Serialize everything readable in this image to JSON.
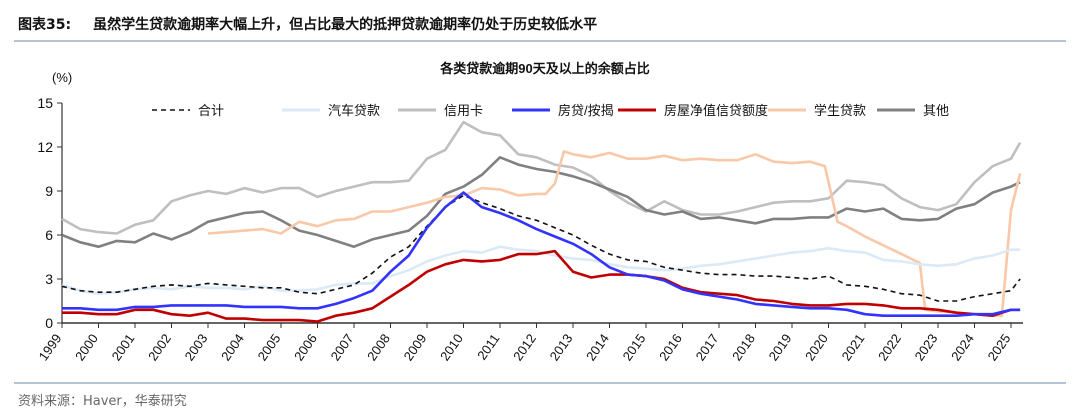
{
  "figure": {
    "label": "图表35:",
    "title": "虽然学生贷款逾期率大幅上升，但占比最大的抵押贷款逾期率仍处于历史较低水平",
    "source": "资料来源：Haver，华泰研究"
  },
  "chart_data": {
    "type": "line",
    "title": "各类贷款逾期90天及以上的余额占比",
    "ylabel": "(%)",
    "xlabel": "",
    "ylim": [
      0,
      15
    ],
    "xlim": [
      1999,
      2025.33
    ],
    "yticks": [
      "0",
      "3",
      "6",
      "9",
      "12",
      "15"
    ],
    "xticks": [
      "1999",
      "2000",
      "2001",
      "2002",
      "2003",
      "2004",
      "2005",
      "2006",
      "2007",
      "2008",
      "2009",
      "2010",
      "2011",
      "2012",
      "2013",
      "2014",
      "2015",
      "2016",
      "2017",
      "2018",
      "2019",
      "2020",
      "2021",
      "2022",
      "2023",
      "2024",
      "2025"
    ],
    "grid": false,
    "legend_position": "top",
    "x_halfyear": [
      1999,
      1999.5,
      2000,
      2000.5,
      2001,
      2001.5,
      2002,
      2002.5,
      2003,
      2003.5,
      2004,
      2004.5,
      2005,
      2005.5,
      2006,
      2006.5,
      2007,
      2007.5,
      2008,
      2008.5,
      2009,
      2009.5,
      2010,
      2010.5,
      2011,
      2011.5,
      2012,
      2012.5,
      2013,
      2013.5,
      2014,
      2014.5,
      2015,
      2015.5,
      2016,
      2016.5,
      2017,
      2017.5,
      2018,
      2018.5,
      2019,
      2019.5,
      2020,
      2020.5,
      2021,
      2021.5,
      2022,
      2022.5,
      2023,
      2023.5,
      2024,
      2024.5,
      2025,
      2025.25
    ],
    "series": [
      {
        "name": "合计",
        "color": "#111111",
        "dash": true,
        "values": [
          2.5,
          2.2,
          2.1,
          2.1,
          2.3,
          2.5,
          2.6,
          2.5,
          2.7,
          2.6,
          2.5,
          2.4,
          2.4,
          2.1,
          2.0,
          2.3,
          2.6,
          3.4,
          4.5,
          5.2,
          6.6,
          7.9,
          8.7,
          8.2,
          7.8,
          7.3,
          7.0,
          6.5,
          6.0,
          5.3,
          4.7,
          4.3,
          4.2,
          3.8,
          3.6,
          3.4,
          3.3,
          3.3,
          3.2,
          3.2,
          3.1,
          3.0,
          3.2,
          2.6,
          2.5,
          2.3,
          2.0,
          1.9,
          1.5,
          1.5,
          1.8,
          2.0,
          2.2,
          3.0
        ]
      },
      {
        "name": "汽车贷款",
        "color": "#dce9f7",
        "values": [
          2.6,
          2.2,
          2.0,
          2.1,
          2.3,
          2.4,
          2.3,
          2.5,
          2.4,
          2.4,
          2.3,
          2.5,
          2.2,
          2.2,
          2.3,
          2.6,
          2.7,
          2.7,
          3.2,
          3.6,
          4.2,
          4.6,
          4.9,
          4.8,
          5.2,
          5.0,
          4.9,
          4.6,
          4.4,
          4.3,
          4.0,
          3.8,
          3.7,
          3.6,
          3.7,
          3.9,
          4.0,
          4.2,
          4.4,
          4.6,
          4.8,
          4.9,
          5.1,
          4.9,
          4.8,
          4.3,
          4.2,
          4.0,
          3.9,
          4.0,
          4.4,
          4.6,
          5.0,
          5.0
        ]
      },
      {
        "name": "信用卡",
        "color": "#bfbfbf",
        "values": [
          7.1,
          6.4,
          6.2,
          6.1,
          6.7,
          7.0,
          8.3,
          8.7,
          9.0,
          8.8,
          9.2,
          8.9,
          9.2,
          9.2,
          8.6,
          9.0,
          9.3,
          9.6,
          9.6,
          9.7,
          11.2,
          11.8,
          13.7,
          13.0,
          12.8,
          11.5,
          11.3,
          10.8,
          10.6,
          10.0,
          9.0,
          8.2,
          7.6,
          8.3,
          7.7,
          7.4,
          7.4,
          7.6,
          7.9,
          8.2,
          8.3,
          8.3,
          8.5,
          9.7,
          9.6,
          9.4,
          8.5,
          7.9,
          7.7,
          8.1,
          9.6,
          10.7,
          11.2,
          12.3
        ]
      },
      {
        "name": "房贷/按揭",
        "color": "#3333ff",
        "values": [
          1.0,
          1.0,
          0.9,
          0.9,
          1.1,
          1.1,
          1.2,
          1.2,
          1.2,
          1.2,
          1.1,
          1.1,
          1.1,
          1.0,
          1.0,
          1.3,
          1.7,
          2.2,
          3.5,
          4.6,
          6.5,
          7.9,
          8.9,
          7.9,
          7.5,
          7.0,
          6.4,
          5.9,
          5.4,
          4.7,
          3.8,
          3.3,
          3.2,
          2.9,
          2.3,
          2.0,
          1.8,
          1.6,
          1.3,
          1.2,
          1.1,
          1.0,
          1.0,
          0.9,
          0.6,
          0.5,
          0.5,
          0.5,
          0.5,
          0.5,
          0.6,
          0.6,
          0.9,
          0.9
        ]
      },
      {
        "name": "房屋净值信贷额度",
        "color": "#c00000",
        "values": [
          0.7,
          0.7,
          0.6,
          0.6,
          0.9,
          0.9,
          0.6,
          0.5,
          0.7,
          0.3,
          0.3,
          0.2,
          0.2,
          0.2,
          0.1,
          0.5,
          0.7,
          1.0,
          1.8,
          2.6,
          3.5,
          4.0,
          4.3,
          4.2,
          4.3,
          4.7,
          4.7,
          4.9,
          3.5,
          3.1,
          3.3,
          3.3,
          3.2,
          3.0,
          2.4,
          2.1,
          2.0,
          1.9,
          1.6,
          1.5,
          1.3,
          1.2,
          1.2,
          1.3,
          1.3,
          1.2,
          1.0,
          1.0,
          0.9,
          0.7,
          0.6,
          0.5,
          0.9,
          0.9
        ]
      },
      {
        "name": "学生贷款",
        "color": "#f8c8a8",
        "x": [
          2003,
          2003.5,
          2004,
          2004.5,
          2005,
          2005.5,
          2006,
          2006.5,
          2007,
          2007.5,
          2008,
          2008.5,
          2009,
          2009.5,
          2010,
          2010.5,
          2011,
          2011.5,
          2012,
          2012.25,
          2012.5,
          2012.75,
          2013,
          2013.5,
          2014,
          2014.5,
          2015,
          2015.5,
          2016,
          2016.5,
          2017,
          2017.5,
          2018,
          2018.5,
          2019,
          2019.5,
          2019.9,
          2020.25,
          2020.5,
          2021,
          2021.5,
          2022,
          2022.5,
          2022.65,
          2023,
          2023.5,
          2024,
          2024.5,
          2024.75,
          2025,
          2025.25
        ],
        "values": [
          6.1,
          6.2,
          6.3,
          6.4,
          6.1,
          6.9,
          6.6,
          7.0,
          7.1,
          7.6,
          7.6,
          7.9,
          8.2,
          8.6,
          8.7,
          9.2,
          9.1,
          8.7,
          8.8,
          8.8,
          9.5,
          11.7,
          11.5,
          11.3,
          11.6,
          11.2,
          11.2,
          11.4,
          11.1,
          11.2,
          11.1,
          11.1,
          11.5,
          11.0,
          10.9,
          11.0,
          10.7,
          6.9,
          6.6,
          5.9,
          5.3,
          4.7,
          4.1,
          0.9,
          0.8,
          0.7,
          0.6,
          0.5,
          0.5,
          7.7,
          10.2
        ]
      },
      {
        "name": "其他",
        "color": "#808080",
        "values": [
          6.0,
          5.5,
          5.2,
          5.6,
          5.5,
          6.1,
          5.7,
          6.2,
          6.9,
          7.2,
          7.5,
          7.6,
          7.0,
          6.3,
          6.0,
          5.6,
          5.2,
          5.7,
          6.0,
          6.3,
          7.3,
          8.8,
          9.3,
          10.1,
          11.3,
          10.8,
          10.5,
          10.3,
          10.0,
          9.6,
          9.1,
          8.6,
          7.7,
          7.4,
          7.6,
          7.1,
          7.2,
          7.0,
          6.8,
          7.1,
          7.1,
          7.2,
          7.2,
          7.8,
          7.6,
          7.8,
          7.1,
          7.0,
          7.1,
          7.8,
          8.1,
          8.9,
          9.3,
          9.6
        ]
      }
    ]
  }
}
